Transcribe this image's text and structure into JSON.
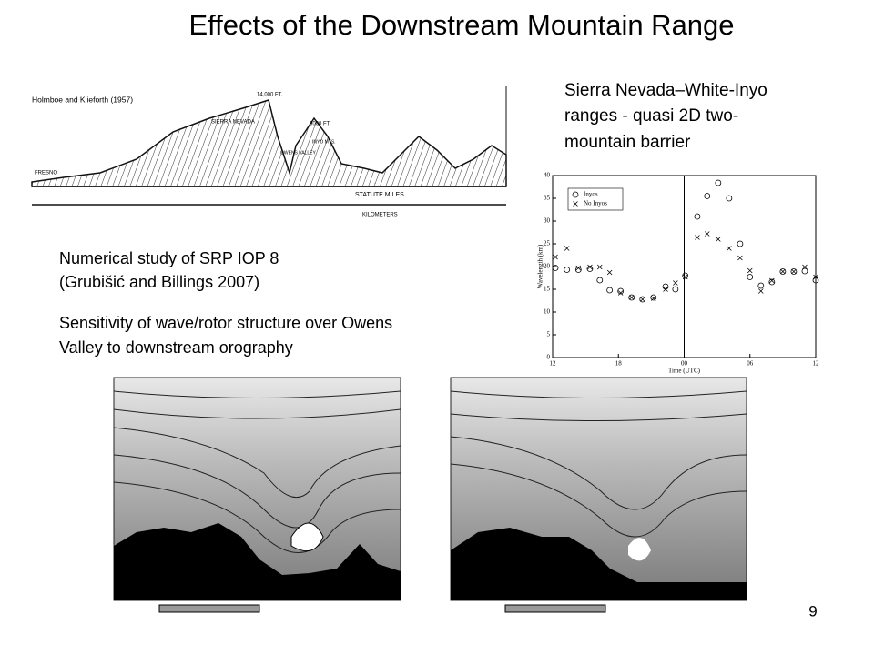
{
  "title": "Effects of the Downstream Mountain Range",
  "note_right": [
    "Sierra Nevada–White-Inyo",
    "ranges -  quasi 2D  two-",
    "mountain barrier"
  ],
  "study": [
    "Numerical study of SRP IOP 8",
    "(Grubišić and Billings 2007)"
  ],
  "sensitivity": [
    "Sensitivity of wave/rotor structure over Owens",
    "Valley to downstream orography"
  ],
  "profile": {
    "credit": "Holmboe and Klieforth (1957)",
    "labels": [
      "14,000 FT.",
      "SIERRA NEVADA",
      "9000 FT.",
      "INYO MTS.",
      "OWENS VALLEY",
      "FRESNO",
      "STATUTE MILES",
      "KILOMETERS"
    ]
  },
  "scatter": {
    "type": "scatter",
    "y_label": "Wavelength (km)",
    "x_label": "Time (UTC)",
    "xlim": [
      12,
      36
    ],
    "ylim": [
      0,
      40
    ],
    "xticks": [
      12,
      18,
      {
        "value": 24,
        "label": "00"
      },
      {
        "value": 30,
        "label": "06"
      },
      {
        "value": 36,
        "label": "12"
      }
    ],
    "yticks": [
      0,
      5,
      10,
      15,
      20,
      25,
      30,
      35,
      40
    ],
    "x": [
      12.25,
      13.3,
      14.35,
      15.4,
      16.3,
      17.2,
      18.2,
      19.2,
      20.2,
      21.2,
      22.3,
      23.2,
      24.1,
      25.2,
      26.1,
      27.1,
      28.1,
      29.1,
      30,
      31,
      32,
      33,
      34,
      35,
      36
    ],
    "series": [
      {
        "name": "Inyos",
        "marker": "circle",
        "values": [
          19.7,
          19.3,
          19.3,
          19.5,
          17,
          14.8,
          14.6,
          13.2,
          12.8,
          13.2,
          15.6,
          15,
          18,
          31,
          35.5,
          38.4,
          35,
          25,
          17.7,
          15.8,
          16.6,
          18.9,
          18.9,
          19,
          17
        ]
      },
      {
        "name": "No Inyos",
        "marker": "cross",
        "values": [
          22.1,
          24,
          19.7,
          19.9,
          19.9,
          18.7,
          14.2,
          13.2,
          12.8,
          13,
          15,
          16.4,
          17.7,
          26.4,
          27.2,
          26,
          24,
          21.9,
          19.1,
          14.6,
          16.9,
          18.9,
          18.9,
          19.9,
          17.7
        ]
      }
    ]
  },
  "page_number": "9"
}
